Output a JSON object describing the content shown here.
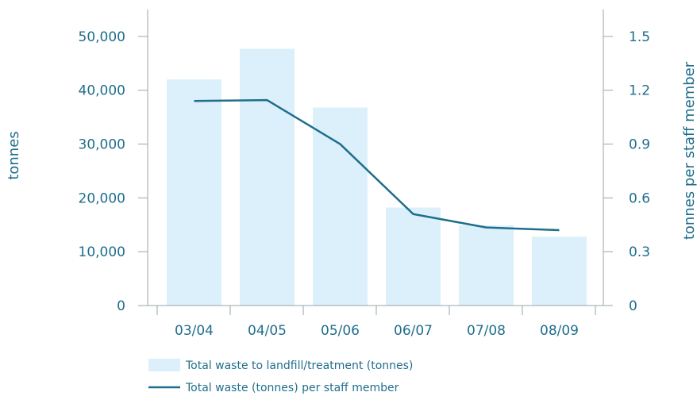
{
  "chart_data": {
    "type": "bar+line",
    "categories": [
      "03/04",
      "04/05",
      "05/06",
      "06/07",
      "07/08",
      "08/09"
    ],
    "series": [
      {
        "name": "Total waste to landfill/treatment (tonnes)",
        "type": "bar",
        "axis": "left",
        "values": [
          42000,
          47700,
          36800,
          18200,
          14900,
          12800
        ]
      },
      {
        "name": "Total waste (tonnes) per staff member",
        "type": "line",
        "axis": "right",
        "values": [
          1.14,
          1.145,
          0.9,
          0.51,
          0.435,
          0.42
        ]
      }
    ],
    "y_left": {
      "label": "tonnes",
      "ticks": [
        0,
        10000,
        20000,
        30000,
        40000,
        50000
      ],
      "tick_labels": [
        "0",
        "10,000",
        "20,000",
        "30,000",
        "40,000",
        "50,000"
      ],
      "range": [
        0,
        55000
      ]
    },
    "y_right": {
      "label": "tonnes per staff member",
      "ticks": [
        0,
        0.3,
        0.6,
        0.9,
        1.2,
        1.5
      ],
      "tick_labels": [
        "0",
        "0.3",
        "0.6",
        "0.9",
        "1.2",
        "1.5"
      ],
      "range": [
        0,
        1.65
      ]
    },
    "grid": false,
    "legend_position": "bottom",
    "colors": {
      "bar": "#dbf0fb",
      "line": "#1f6e8c",
      "axis": "#9aa4aa",
      "text": "#1f6e8c"
    }
  }
}
